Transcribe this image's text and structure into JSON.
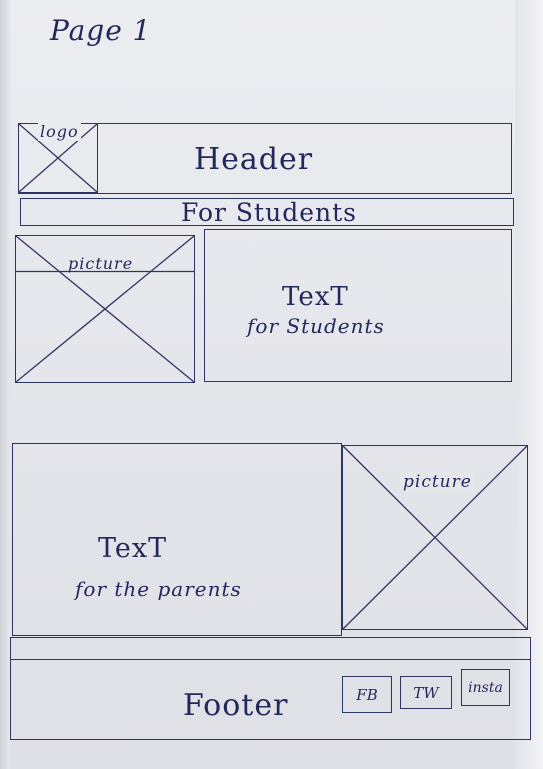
{
  "page_title": "Page 1",
  "header": {
    "logo_label": "logo",
    "title": "Header"
  },
  "banner": {
    "label": "For Students"
  },
  "students": {
    "picture_label": "picture",
    "text_title": "TexT",
    "text_subtitle": "for Students"
  },
  "parents": {
    "text_title": "TexT",
    "text_subtitle": "for the parents",
    "picture_label": "picture"
  },
  "footer": {
    "label": "Footer",
    "social": [
      "FB",
      "TW",
      "insta"
    ]
  }
}
